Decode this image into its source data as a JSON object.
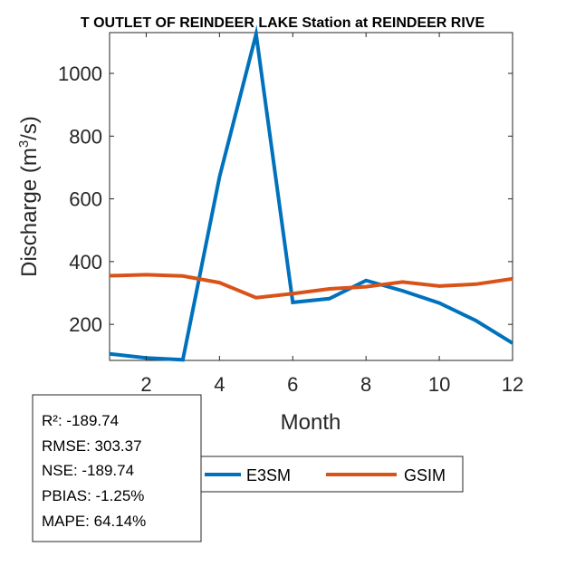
{
  "chart_data": {
    "type": "line",
    "title": "T OUTLET OF REINDEER LAKE  Station at  REINDEER RIVE",
    "xlabel": "Month",
    "ylabel_main": "Discharge (m",
    "ylabel_sup": "3",
    "ylabel_tail": "/s)",
    "xlim": [
      1,
      12
    ],
    "ylim": [
      85,
      1130
    ],
    "x_ticks": [
      2,
      4,
      6,
      8,
      10,
      12
    ],
    "x_tick_labels": [
      "2",
      "4",
      "6",
      "8",
      "10",
      "12"
    ],
    "y_ticks": [
      200,
      400,
      600,
      800,
      1000
    ],
    "y_tick_labels": [
      "200",
      "400",
      "600",
      "800",
      "1000"
    ],
    "x": [
      1,
      2,
      3,
      4,
      5,
      6,
      7,
      8,
      9,
      10,
      11,
      12
    ],
    "series": [
      {
        "name": "E3SM",
        "color": "#0072BD",
        "values": [
          106,
          93,
          87,
          670,
          1125,
          270,
          282,
          340,
          307,
          268,
          212,
          140
        ]
      },
      {
        "name": "GSIM",
        "color": "#D95319",
        "values": [
          355,
          358,
          354,
          333,
          285,
          298,
          313,
          320,
          335,
          322,
          328,
          345
        ]
      }
    ],
    "legend": [
      "E3SM",
      "GSIM"
    ],
    "legend_position": "bottom"
  },
  "stats": {
    "lines": [
      "R²: -189.74",
      "RMSE: 303.37",
      "NSE: -189.74",
      "PBIAS: -1.25%",
      "MAPE: 64.14%"
    ]
  }
}
